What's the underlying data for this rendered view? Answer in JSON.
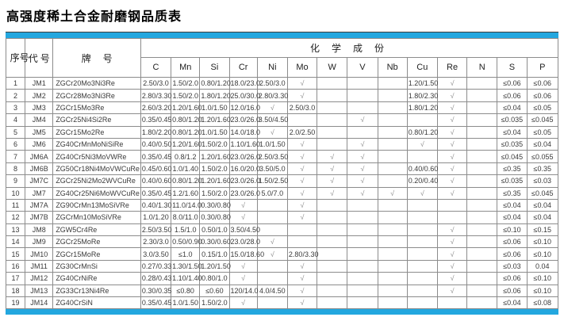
{
  "page": {
    "title": "高强度稀土合金耐磨钢品质表"
  },
  "colors": {
    "accent_bar": "#23A7DF"
  },
  "table": {
    "header": {
      "serial": "序号",
      "code": "代 号",
      "grade": "牌　 号",
      "group": "化 学 成 份",
      "elements": [
        "C",
        "Mn",
        "Si",
        "Cr",
        "Ni",
        "Mo",
        "W",
        "V",
        "Nb",
        "Cu",
        "Re",
        "N",
        "S",
        "P"
      ]
    },
    "check_symbol": "√",
    "rows": [
      {
        "no": "1",
        "code": "JM1",
        "grade": "ZGCr20Mo3Ni3Re",
        "values": [
          "2.50/3.0",
          "1.50/2.0",
          "0.80/1.20",
          "18.0/23.0",
          "2.50/3.0",
          "√",
          "",
          "",
          "",
          "1.20/1.50",
          "√",
          "",
          "≤0.06",
          "≤0.06"
        ]
      },
      {
        "no": "2",
        "code": "JM2",
        "grade": "ZGCr28Mo3Ni3Re",
        "values": [
          "2.80/3.30",
          "1.50/2.0",
          "1.80/1.20",
          "25.0/30.0",
          "2.80/3.30",
          "√",
          "",
          "",
          "",
          "1.80/2.30",
          "√",
          "",
          "≤0.06",
          "≤0.06"
        ]
      },
      {
        "no": "3",
        "code": "JM3",
        "grade": "ZGCr15Mo3Re",
        "values": [
          "2.60/3.20",
          "1.20/1.60",
          "1.0/1.50",
          "12.0/16.0",
          "√",
          "2.50/3.0",
          "",
          "",
          "",
          "1.80/1.20",
          "√",
          "",
          "≤0.04",
          "≤0.05"
        ]
      },
      {
        "no": "4",
        "code": "JM4",
        "grade": "ZGCr25Ni4Si2Re",
        "values": [
          "0.35/0.45",
          "0.80/1.20",
          "1.20/1.60",
          "23.0/26.0",
          "3.50/4.50",
          "",
          "",
          "√",
          "",
          "",
          "√",
          "",
          "≤0.035",
          "≤0.045"
        ]
      },
      {
        "no": "5",
        "code": "JM5",
        "grade": "ZGCr15Mo2Re",
        "values": [
          "1.80/2.20",
          "0.80/1.20",
          "1.0/1.50",
          "14.0/18.0",
          "√",
          "2.0/2.50",
          "",
          "",
          "",
          "0.80/1.20",
          "√",
          "",
          "≤0.04",
          "≤0.05"
        ]
      },
      {
        "no": "6",
        "code": "JM6",
        "grade": "ZG40CrMnMoNiSiRe",
        "values": [
          "0.40/0.50",
          "1.20/1.60",
          "1.50/2.0",
          "1.10/1.60",
          "1.0/1.50",
          "√",
          "",
          "√",
          "",
          "√",
          "√",
          "",
          "≤0.035",
          "≤0.04"
        ]
      },
      {
        "no": "7",
        "code": "JM6A",
        "grade": "ZG40Cr5Ni3MoVWRe",
        "values": [
          "0.35/0.45",
          "0.8/1.2",
          "1.20/1.60",
          "23.0/26.0",
          "2.50/3.50",
          "√",
          "√",
          "√",
          "",
          "",
          "√",
          "",
          "≤0.045",
          "≤0.055"
        ]
      },
      {
        "no": "8",
        "code": "JM6B",
        "grade": "ZG50Cr18Ni4MoVWCuRe",
        "values": [
          "0.45/0.60",
          "1.0/1.40",
          "1.50/2.0",
          "16.0/20.0",
          "3.50/5.0",
          "√",
          "√",
          "√",
          "",
          "0.40/0.60",
          "√",
          "",
          "≤0.35",
          "≤0.35"
        ]
      },
      {
        "no": "9",
        "code": "JM7C",
        "grade": "ZGCr25Ni2Mo2WVCuRe",
        "values": [
          "0.40/0.60",
          "0.80/1.20",
          "1.20/1.60",
          "23.0/26.0",
          "1.50/2.50",
          "√",
          "√",
          "√",
          "",
          "0.20/0.40",
          "√",
          "",
          "≤0.035",
          "≤0.03"
        ]
      },
      {
        "no": "10",
        "code": "JM7",
        "grade": "ZG40Cr25Ni6MoWVCuRe",
        "values": [
          "0.35/0.45",
          "1.2/1.60",
          "1.50/2.0",
          "23.0/26.0",
          "5.0/7.0",
          "√",
          "√",
          "√",
          "√",
          "√",
          "√",
          "",
          "≤0.35",
          "≤0.045"
        ]
      },
      {
        "no": "11",
        "code": "JM7A",
        "grade": "ZG90CrMn13MoSiVRe",
        "values": [
          "0.40/1.30",
          "11.0/14.0",
          "0.30/0.80",
          "√",
          "",
          "√",
          "",
          "",
          "",
          "",
          "",
          "",
          "≤0.04",
          "≤0.04"
        ]
      },
      {
        "no": "12",
        "code": "JM7B",
        "grade": "ZGCrMn10MoSiVRe",
        "values": [
          "1.0/1.20",
          "8.0/11.0",
          "0.30/0.80",
          "√",
          "",
          "√",
          "",
          "",
          "",
          "",
          "",
          "",
          "≤0.04",
          "≤0.04"
        ]
      },
      {
        "no": "13",
        "code": "JM8",
        "grade": "ZGW5Cr4Re",
        "values": [
          "2.50/3.50",
          "1.5/1.0",
          "0.50/1.0",
          "3.50/4.50",
          "",
          "",
          "",
          "",
          "",
          "",
          "√",
          "",
          "≤0.10",
          "≤0.15"
        ]
      },
      {
        "no": "14",
        "code": "JM9",
        "grade": "ZGCr25MoRe",
        "values": [
          "2.30/3.0",
          "0.50/0.90",
          "0.30/0.60",
          "23.0/28.0",
          "√",
          "",
          "",
          "",
          "",
          "",
          "√",
          "",
          "≤0.06",
          "≤0.10"
        ]
      },
      {
        "no": "15",
        "code": "JM10",
        "grade": "ZGCr15MoRe",
        "values": [
          "3.0/3.50",
          "≤1.0",
          "0.15/1.0",
          "15.0/18.60",
          "√",
          "2.80/3.30",
          "",
          "",
          "",
          "",
          "√",
          "",
          "≤0.06",
          "≤0.10"
        ]
      },
      {
        "no": "16",
        "code": "JM11",
        "grade": "ZG30CrMnSi",
        "values": [
          "0.27/0.33",
          "1.30/1.50",
          "1.20/1.50",
          "√",
          "",
          "√",
          "",
          "",
          "",
          "",
          "√",
          "",
          "≤0.03",
          "0.04"
        ]
      },
      {
        "no": "17",
        "code": "JM12",
        "grade": "ZG40CrNiRe",
        "values": [
          "0.28/0.43",
          "1.10/1.40",
          "0.80/1.0",
          "√",
          "",
          "√",
          "",
          "",
          "",
          "",
          "√",
          "",
          "≤0.06",
          "≤0.10"
        ]
      },
      {
        "no": "18",
        "code": "JM13",
        "grade": "ZG33Cr13Ni4Re",
        "values": [
          "0.30/0.35",
          "≤0.80",
          "≤0.60",
          "120/14.0",
          "4.0/4.50",
          "√",
          "",
          "",
          "",
          "",
          "√",
          "",
          "≤0.06",
          "≤0.10"
        ]
      },
      {
        "no": "19",
        "code": "JM14",
        "grade": "ZG40CrSiN",
        "values": [
          "0.35/0.45",
          "1.0/1.50",
          "1.50/2.0",
          "√",
          "",
          "√",
          "",
          "",
          "",
          "",
          "",
          "",
          "≤0.04",
          "≤0.08"
        ]
      }
    ]
  }
}
